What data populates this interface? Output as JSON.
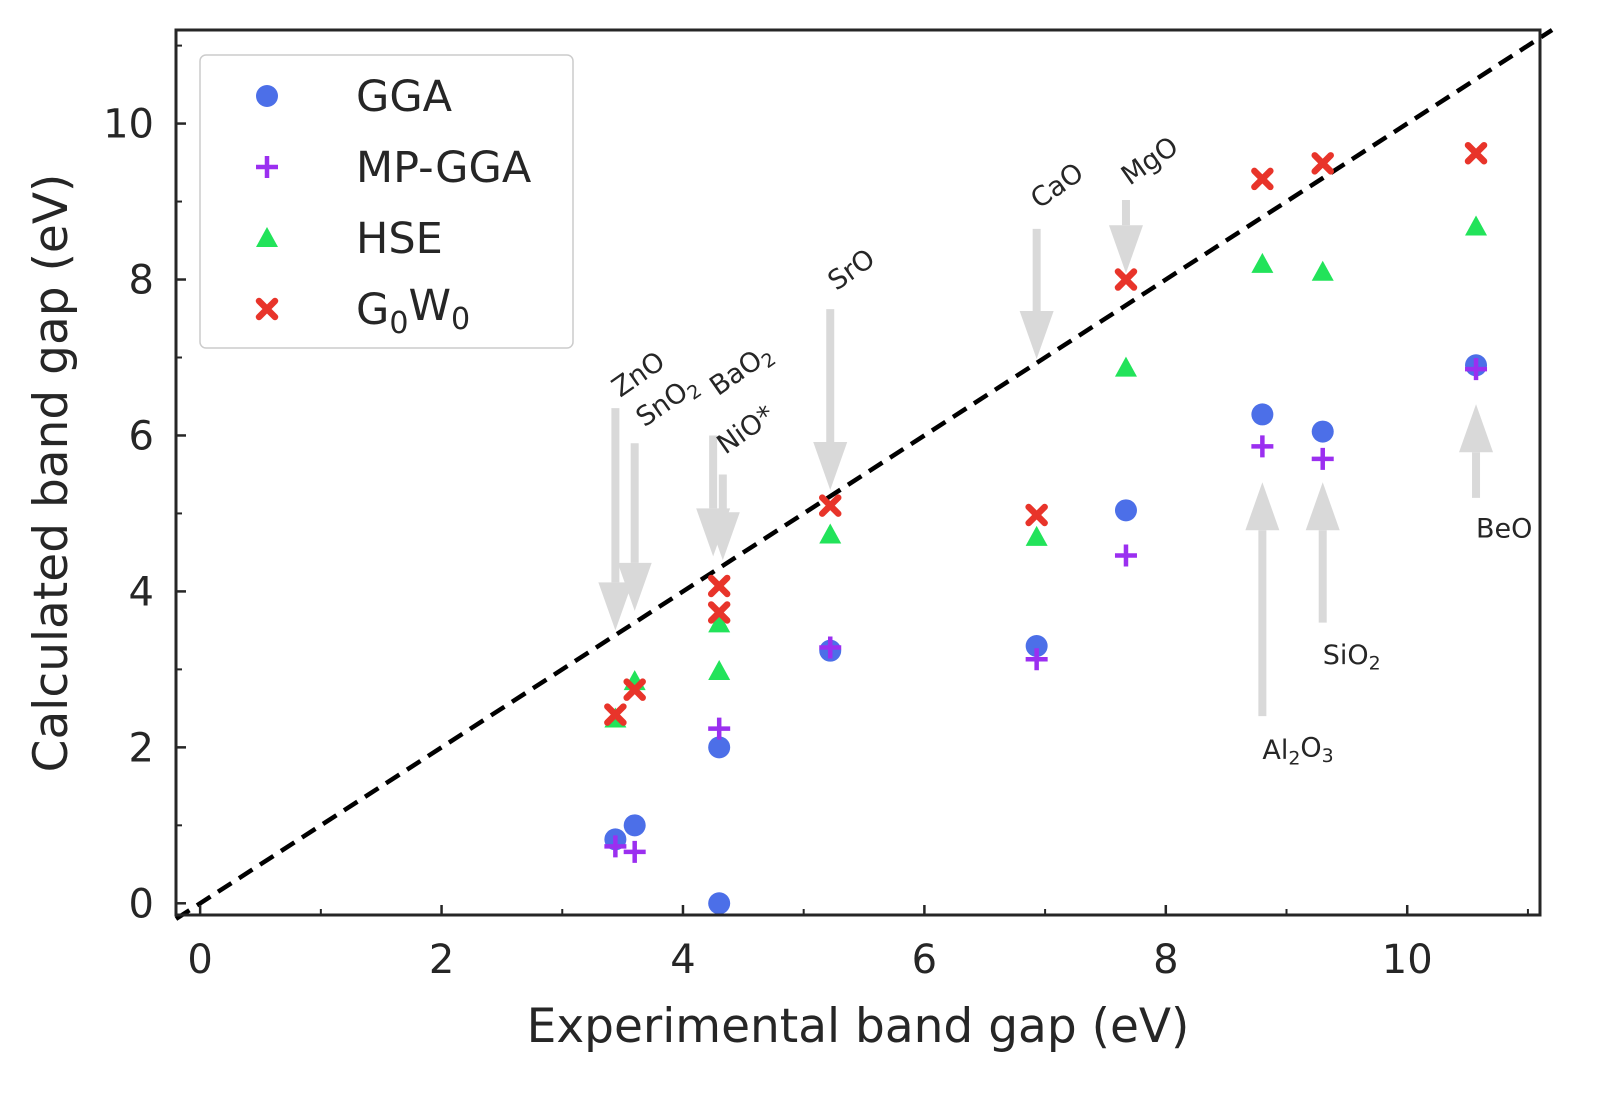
{
  "chart_data": {
    "type": "scatter",
    "xlabel": "Experimental band gap (eV)",
    "ylabel": "Calculated band gap (eV)",
    "xlim": [
      -0.2,
      11.1
    ],
    "ylim": [
      -0.15,
      11.2
    ],
    "xticks_major": [
      0,
      2,
      4,
      6,
      8,
      10
    ],
    "xticks_minor": [
      1,
      3,
      5,
      7,
      9,
      11
    ],
    "yticks_major": [
      0,
      2,
      4,
      6,
      8,
      10
    ],
    "yticks_minor": [
      1,
      3,
      5,
      7,
      9,
      11
    ],
    "grid": false,
    "legend_position": "top-left",
    "reference_line": {
      "style": "dashed",
      "color": "#000000",
      "from": [
        -0.2,
        -0.2
      ],
      "to": [
        11.2,
        11.2
      ]
    },
    "series": [
      {
        "name": "GGA",
        "marker": "circle",
        "color": "#4c6fe8",
        "points": [
          [
            3.44,
            0.82
          ],
          [
            3.6,
            1.0
          ],
          [
            4.3,
            2.0
          ],
          [
            4.3,
            0.0
          ],
          [
            5.22,
            3.24
          ],
          [
            6.93,
            3.3
          ],
          [
            7.67,
            5.04
          ],
          [
            8.8,
            6.27
          ],
          [
            9.3,
            6.05
          ],
          [
            10.57,
            6.9
          ]
        ]
      },
      {
        "name": "MP-GGA",
        "marker": "plus",
        "color": "#9b2ff0",
        "points": [
          [
            3.44,
            0.73
          ],
          [
            3.6,
            0.66
          ],
          [
            4.3,
            2.24
          ],
          [
            5.22,
            3.28
          ],
          [
            6.93,
            3.13
          ],
          [
            7.67,
            4.46
          ],
          [
            8.8,
            5.86
          ],
          [
            9.3,
            5.7
          ],
          [
            10.57,
            6.85
          ]
        ]
      },
      {
        "name": "HSE",
        "marker": "triangle",
        "color": "#22e35a",
        "points": [
          [
            3.44,
            2.37
          ],
          [
            3.6,
            2.85
          ],
          [
            4.3,
            3.59
          ],
          [
            4.3,
            2.98
          ],
          [
            5.22,
            4.73
          ],
          [
            6.93,
            4.7
          ],
          [
            7.67,
            6.87
          ],
          [
            8.8,
            8.2
          ],
          [
            9.3,
            8.1
          ],
          [
            10.57,
            8.68
          ]
        ]
      },
      {
        "name": "G0W0",
        "marker": "x",
        "color": "#e8342a",
        "points": [
          [
            3.44,
            2.42
          ],
          [
            3.6,
            2.74
          ],
          [
            4.3,
            4.07
          ],
          [
            4.3,
            3.73
          ],
          [
            5.22,
            5.1
          ],
          [
            6.93,
            4.98
          ],
          [
            7.67,
            8.0
          ],
          [
            8.8,
            9.29
          ],
          [
            9.3,
            9.49
          ],
          [
            10.57,
            9.62
          ]
        ]
      }
    ],
    "legend": [
      {
        "label": "GGA",
        "sub": "",
        "after": ""
      },
      {
        "label": "MP-GGA",
        "sub": "",
        "after": ""
      },
      {
        "label": "HSE",
        "sub": "",
        "after": ""
      },
      {
        "label": "G",
        "sub": "0",
        "after": "W0"
      }
    ],
    "annotations": [
      {
        "text": "ZnO",
        "sub": "",
        "rest": "",
        "arrow": "down",
        "x": 3.44,
        "y_tail": 6.35,
        "y_head": 3.5,
        "rotated": true,
        "tx": 3.48,
        "ty": 6.48
      },
      {
        "text": "SnO",
        "sub": "2",
        "rest": "",
        "arrow": "down",
        "x": 3.6,
        "y_tail": 5.9,
        "y_head": 3.75,
        "rotated": true,
        "tx": 3.68,
        "ty": 6.1
      },
      {
        "text": "BaO",
        "sub": "2",
        "rest": "",
        "arrow": "down",
        "x": 4.25,
        "y_tail": 6.0,
        "y_head": 4.45,
        "rotated": true,
        "tx": 4.29,
        "ty": 6.5
      },
      {
        "text": "NiO*",
        "sub": "",
        "rest": "",
        "arrow": "down",
        "x": 4.33,
        "y_tail": 5.5,
        "y_head": 4.4,
        "rotated": true,
        "tx": 4.35,
        "ty": 5.75
      },
      {
        "text": "SrO",
        "sub": "",
        "rest": "",
        "arrow": "down",
        "x": 5.22,
        "y_tail": 7.62,
        "y_head": 5.3,
        "rotated": true,
        "tx": 5.27,
        "ty": 7.85
      },
      {
        "text": "CaO",
        "sub": "",
        "rest": "",
        "arrow": "down",
        "x": 6.93,
        "y_tail": 8.65,
        "y_head": 6.98,
        "rotated": true,
        "tx": 6.95,
        "ty": 8.9
      },
      {
        "text": "MgO",
        "sub": "",
        "rest": "",
        "arrow": "down",
        "x": 7.67,
        "y_tail": 9.02,
        "y_head": 8.08,
        "rotated": true,
        "tx": 7.7,
        "ty": 9.2
      },
      {
        "text": "Al",
        "sub": "2",
        "rest": "O3",
        "arrow": "up",
        "x": 8.8,
        "y_tail": 2.4,
        "y_head": 5.4,
        "rotated": false,
        "tx": 8.8,
        "ty": 1.98
      },
      {
        "text": "SiO",
        "sub": "2",
        "rest": "",
        "arrow": "up",
        "x": 9.3,
        "y_tail": 3.6,
        "y_head": 5.4,
        "rotated": false,
        "tx": 9.3,
        "ty": 3.2
      },
      {
        "text": "BeO",
        "sub": "",
        "rest": "",
        "arrow": "up",
        "x": 10.57,
        "y_tail": 5.2,
        "y_head": 6.4,
        "rotated": false,
        "tx": 10.57,
        "ty": 4.82
      }
    ]
  }
}
